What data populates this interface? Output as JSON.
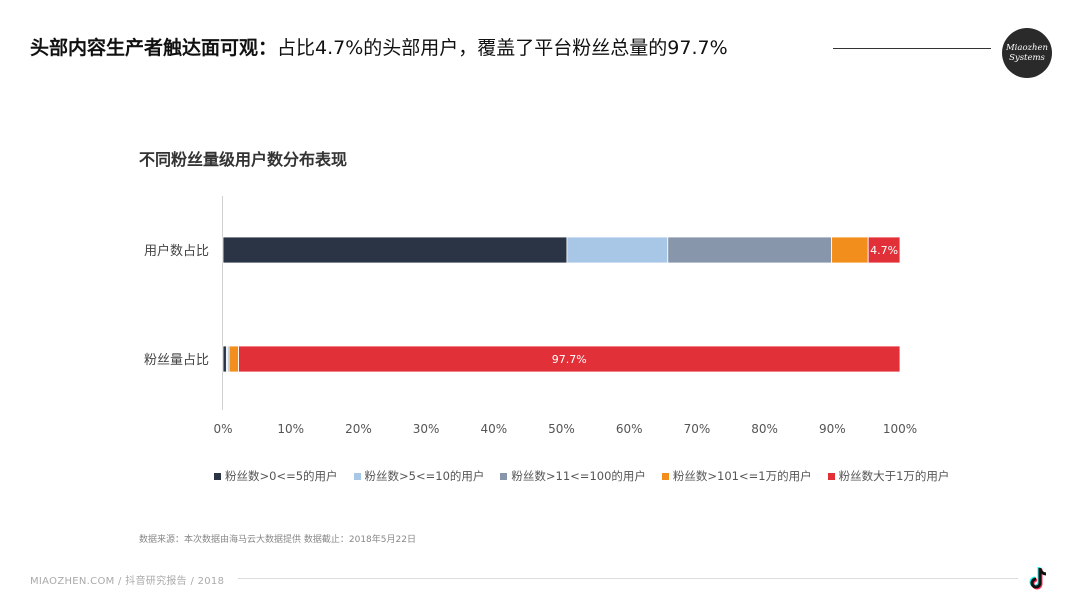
{
  "headline": {
    "bold": "头部内容生产者触达面可观：",
    "normal": "占比4.7%的头部用户，覆盖了平台粉丝总量的97.7%"
  },
  "logo": {
    "line1": "Miaozhen",
    "line2": "Systems"
  },
  "colors": {
    "c0": "#2b3445",
    "c1": "#a8c6e6",
    "c2": "#8796ab",
    "c3": "#f28f1c",
    "c4": "#e23038"
  },
  "chart_data": {
    "type": "bar",
    "orientation": "horizontal",
    "stacked": true,
    "percent": true,
    "title": "不同粉丝量级用户数分布表现",
    "categories": [
      "用户数占比",
      "粉丝量占比"
    ],
    "series": [
      {
        "name": "粉丝数>0<=5的用户",
        "values": [
          50.8,
          0.5
        ]
      },
      {
        "name": "粉丝数>5<=10的用户",
        "values": [
          14.9,
          0.2
        ]
      },
      {
        "name": "粉丝数>11<=100的用户",
        "values": [
          24.2,
          0.2
        ]
      },
      {
        "name": "粉丝数>101<=1万的用户",
        "values": [
          5.4,
          1.4
        ]
      },
      {
        "name": "粉丝数大于1万的用户",
        "values": [
          4.7,
          97.7
        ]
      }
    ],
    "data_labels": [
      {
        "series": 4,
        "category": 0,
        "text": "4.7%"
      },
      {
        "series": 4,
        "category": 1,
        "text": "97.7%"
      }
    ],
    "x_ticks": [
      "0%",
      "10%",
      "20%",
      "30%",
      "40%",
      "50%",
      "60%",
      "70%",
      "80%",
      "90%",
      "100%"
    ],
    "xlim": [
      0,
      100
    ],
    "legend_position": "bottom",
    "grid": false
  },
  "source": "数据来源：本次数据由海马云大数据提供 数据截止：2018年5月22日",
  "footer": {
    "text": "MIAOZHEN.COM / 抖音研究报告 / 2018"
  }
}
